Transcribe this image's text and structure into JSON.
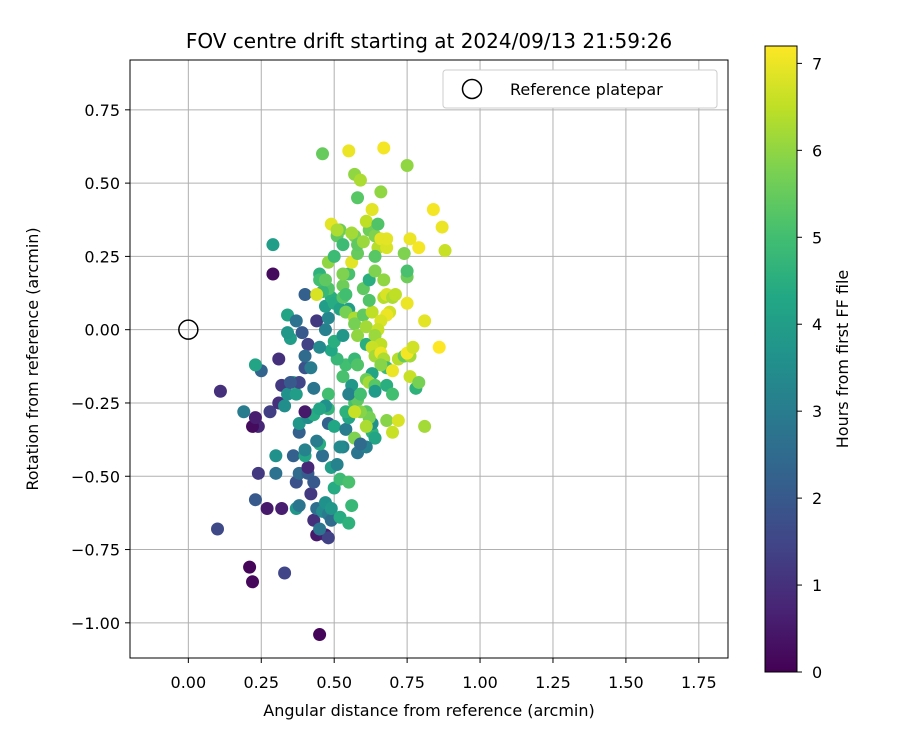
{
  "chart_data": {
    "type": "scatter",
    "title": "FOV centre drift starting at 2024/09/13 21:59:26",
    "xlabel": "Angular distance from reference (arcmin)",
    "ylabel": "Rotation from reference (arcmin)",
    "xlim": [
      -0.2,
      1.85
    ],
    "ylim": [
      -1.12,
      0.92
    ],
    "xticks": [
      0.0,
      0.25,
      0.5,
      0.75,
      1.0,
      1.25,
      1.5,
      1.75
    ],
    "xtick_labels": [
      "0.00",
      "0.25",
      "0.50",
      "0.75",
      "1.00",
      "1.25",
      "1.50",
      "1.75"
    ],
    "yticks": [
      0.75,
      0.5,
      0.25,
      0.0,
      -0.25,
      -0.5,
      -0.75,
      -1.0
    ],
    "ytick_labels": [
      "0.75",
      "0.50",
      "0.25",
      "0.00",
      "−0.25",
      "−0.50",
      "−0.75",
      "−1.00"
    ],
    "grid": true,
    "legend": {
      "position": "upper-right",
      "entries": [
        {
          "label": "Reference platepar",
          "marker": "open-circle"
        }
      ]
    },
    "reference_point": {
      "x": 0.0,
      "y": 0.0,
      "label": "Reference platepar"
    },
    "colorbar": {
      "label": "Hours from first FF file",
      "colormap": "viridis",
      "range": [
        0,
        7.2
      ],
      "ticks": [
        0,
        1,
        2,
        3,
        4,
        5,
        6,
        7
      ],
      "tick_labels": [
        "0",
        "1",
        "2",
        "3",
        "4",
        "5",
        "6",
        "7"
      ]
    },
    "points": [
      [
        0.45,
        -1.04,
        0.1
      ],
      [
        0.22,
        -0.86,
        0.15
      ],
      [
        0.21,
        -0.81,
        0.1
      ],
      [
        0.33,
        -0.83,
        1.5
      ],
      [
        0.1,
        -0.68,
        1.6
      ],
      [
        0.27,
        -0.61,
        0.5
      ],
      [
        0.32,
        -0.61,
        0.6
      ],
      [
        0.23,
        -0.58,
        2.0
      ],
      [
        0.24,
        -0.49,
        1.2
      ],
      [
        0.3,
        -0.49,
        2.7
      ],
      [
        0.24,
        -0.33,
        0.8
      ],
      [
        0.22,
        -0.33,
        0.2
      ],
      [
        0.23,
        -0.3,
        0.6
      ],
      [
        0.28,
        -0.28,
        1.3
      ],
      [
        0.19,
        -0.28,
        3.0
      ],
      [
        0.11,
        -0.21,
        1.0
      ],
      [
        0.25,
        -0.14,
        2.3
      ],
      [
        0.23,
        -0.12,
        4.2
      ],
      [
        0.31,
        -0.1,
        1.0
      ],
      [
        0.32,
        -0.19,
        1.2
      ],
      [
        0.31,
        -0.25,
        1.0
      ],
      [
        0.33,
        -0.26,
        3.5
      ],
      [
        0.34,
        -0.22,
        3.6
      ],
      [
        0.37,
        -0.22,
        4.0
      ],
      [
        0.36,
        -0.18,
        4.5
      ],
      [
        0.38,
        -0.18,
        1.5
      ],
      [
        0.35,
        -0.18,
        2.0
      ],
      [
        0.35,
        -0.03,
        4.0
      ],
      [
        0.34,
        -0.01,
        3.8
      ],
      [
        0.34,
        0.05,
        4.2
      ],
      [
        0.37,
        0.03,
        2.7
      ],
      [
        0.39,
        -0.01,
        2.0
      ],
      [
        0.41,
        -0.05,
        1.4
      ],
      [
        0.4,
        -0.13,
        1.8
      ],
      [
        0.4,
        -0.09,
        2.5
      ],
      [
        0.42,
        -0.13,
        3.0
      ],
      [
        0.4,
        0.12,
        2.2
      ],
      [
        0.29,
        0.19,
        0.2
      ],
      [
        0.29,
        0.29,
        4.0
      ],
      [
        0.3,
        -0.43,
        3.6
      ],
      [
        0.36,
        -0.43,
        2.2
      ],
      [
        0.37,
        -0.61,
        3.8
      ],
      [
        0.38,
        -0.6,
        2.8
      ],
      [
        0.37,
        -0.52,
        1.8
      ],
      [
        0.38,
        -0.49,
        2.5
      ],
      [
        0.41,
        -0.49,
        2.1
      ],
      [
        0.42,
        -0.56,
        1.2
      ],
      [
        0.43,
        -0.52,
        2.0
      ],
      [
        0.41,
        -0.47,
        0.8
      ],
      [
        0.4,
        -0.43,
        4.2
      ],
      [
        0.4,
        -0.41,
        3.2
      ],
      [
        0.38,
        -0.35,
        2.2
      ],
      [
        0.38,
        -0.32,
        3.8
      ],
      [
        0.41,
        -0.3,
        3.5
      ],
      [
        0.43,
        -0.29,
        4.4
      ],
      [
        0.4,
        -0.28,
        0.5
      ],
      [
        0.43,
        -0.2,
        2.8
      ],
      [
        0.43,
        -0.65,
        1.0
      ],
      [
        0.44,
        -0.61,
        2.6
      ],
      [
        0.44,
        -0.7,
        0.5
      ],
      [
        0.47,
        -0.7,
        0.6
      ],
      [
        0.48,
        -0.71,
        1.4
      ],
      [
        0.45,
        -0.68,
        2.8
      ],
      [
        0.46,
        -0.62,
        3.4
      ],
      [
        0.48,
        -0.63,
        3.0
      ],
      [
        0.49,
        -0.65,
        2.5
      ],
      [
        0.47,
        -0.59,
        3.6
      ],
      [
        0.49,
        -0.61,
        3.8
      ],
      [
        0.52,
        -0.64,
        4.4
      ],
      [
        0.55,
        -0.66,
        4.6
      ],
      [
        0.56,
        -0.6,
        4.8
      ],
      [
        0.5,
        -0.54,
        4.4
      ],
      [
        0.52,
        -0.51,
        4.9
      ],
      [
        0.55,
        -0.52,
        5.1
      ],
      [
        0.49,
        -0.47,
        4.0
      ],
      [
        0.51,
        -0.46,
        3.2
      ],
      [
        0.46,
        -0.43,
        2.6
      ],
      [
        0.45,
        -0.39,
        4.5
      ],
      [
        0.44,
        -0.38,
        3.0
      ],
      [
        0.48,
        -0.32,
        2.2
      ],
      [
        0.5,
        -0.33,
        4.3
      ],
      [
        0.48,
        -0.27,
        4.7
      ],
      [
        0.48,
        -0.22,
        5.0
      ],
      [
        0.47,
        -0.26,
        3.6
      ],
      [
        0.45,
        -0.27,
        4.2
      ],
      [
        0.53,
        -0.4,
        3.2
      ],
      [
        0.52,
        -0.4,
        3.4
      ],
      [
        0.54,
        -0.34,
        3.0
      ],
      [
        0.55,
        -0.3,
        4.2
      ],
      [
        0.57,
        -0.37,
        5.8
      ],
      [
        0.58,
        -0.42,
        2.8
      ],
      [
        0.54,
        -0.28,
        4.6
      ],
      [
        0.57,
        -0.25,
        5.1
      ],
      [
        0.58,
        -0.24,
        5.4
      ],
      [
        0.56,
        -0.19,
        3.8
      ],
      [
        0.55,
        -0.22,
        3.2
      ],
      [
        0.53,
        -0.16,
        5.1
      ],
      [
        0.54,
        -0.12,
        5.0
      ],
      [
        0.51,
        -0.1,
        4.8
      ],
      [
        0.49,
        -0.07,
        4.3
      ],
      [
        0.5,
        -0.04,
        4.5
      ],
      [
        0.53,
        -0.02,
        3.8
      ],
      [
        0.45,
        -0.06,
        3.4
      ],
      [
        0.47,
        0.0,
        3.1
      ],
      [
        0.44,
        0.03,
        1.2
      ],
      [
        0.48,
        0.04,
        3.3
      ],
      [
        0.47,
        0.08,
        4.0
      ],
      [
        0.49,
        0.11,
        4.5
      ],
      [
        0.48,
        0.14,
        5.2
      ],
      [
        0.46,
        0.13,
        4.8
      ],
      [
        0.44,
        0.12,
        6.8
      ],
      [
        0.45,
        0.19,
        4.6
      ],
      [
        0.45,
        0.17,
        5.0
      ],
      [
        0.47,
        0.17,
        5.4
      ],
      [
        0.48,
        0.23,
        6.0
      ],
      [
        0.5,
        0.09,
        4.4
      ],
      [
        0.52,
        0.07,
        4.1
      ],
      [
        0.53,
        0.11,
        5.3
      ],
      [
        0.53,
        0.15,
        5.6
      ],
      [
        0.54,
        0.12,
        5.0
      ],
      [
        0.55,
        0.07,
        4.0
      ],
      [
        0.54,
        0.06,
        5.7
      ],
      [
        0.57,
        0.04,
        6.3
      ],
      [
        0.57,
        0.02,
        5.7
      ],
      [
        0.6,
        0.05,
        5.4
      ],
      [
        0.58,
        -0.02,
        6.0
      ],
      [
        0.61,
        -0.05,
        4.5
      ],
      [
        0.61,
        0.01,
        6.2
      ],
      [
        0.63,
        0.06,
        6.5
      ],
      [
        0.62,
        0.1,
        5.2
      ],
      [
        0.6,
        0.14,
        5.4
      ],
      [
        0.62,
        0.17,
        4.5
      ],
      [
        0.64,
        0.2,
        5.8
      ],
      [
        0.55,
        0.19,
        5.1
      ],
      [
        0.53,
        0.19,
        5.8
      ],
      [
        0.5,
        0.25,
        4.9
      ],
      [
        0.51,
        0.32,
        5.4
      ],
      [
        0.52,
        0.34,
        5.6
      ],
      [
        0.53,
        0.29,
        4.9
      ],
      [
        0.56,
        0.23,
        6.9
      ],
      [
        0.58,
        0.26,
        5.5
      ],
      [
        0.57,
        0.32,
        5.7
      ],
      [
        0.56,
        0.33,
        6.2
      ],
      [
        0.58,
        0.29,
        5.4
      ],
      [
        0.6,
        0.3,
        6.1
      ],
      [
        0.62,
        0.34,
        5.6
      ],
      [
        0.61,
        0.37,
        6.5
      ],
      [
        0.65,
        0.28,
        6.4
      ],
      [
        0.64,
        0.32,
        5.8
      ],
      [
        0.65,
        0.36,
        5.2
      ],
      [
        0.66,
        0.31,
        6.9
      ],
      [
        0.68,
        0.28,
        6.8
      ],
      [
        0.68,
        0.31,
        6.9
      ],
      [
        0.64,
        0.25,
        5.3
      ],
      [
        0.63,
        0.41,
        6.9
      ],
      [
        0.58,
        0.45,
        5.3
      ],
      [
        0.66,
        0.47,
        6.0
      ],
      [
        0.57,
        0.53,
        6.0
      ],
      [
        0.59,
        0.51,
        6.3
      ],
      [
        0.55,
        0.61,
        7.0
      ],
      [
        0.46,
        0.6,
        5.5
      ],
      [
        0.67,
        0.62,
        7.1
      ],
      [
        0.75,
        0.56,
        6.0
      ],
      [
        0.49,
        0.36,
        6.9
      ],
      [
        0.51,
        0.34,
        6.3
      ],
      [
        0.67,
        0.11,
        6.4
      ],
      [
        0.68,
        0.12,
        6.8
      ],
      [
        0.7,
        0.11,
        6.3
      ],
      [
        0.69,
        0.06,
        6.7
      ],
      [
        0.71,
        0.12,
        6.5
      ],
      [
        0.67,
        0.17,
        6.0
      ],
      [
        0.68,
        0.05,
        7.0
      ],
      [
        0.66,
        0.03,
        6.8
      ],
      [
        0.65,
        0.0,
        6.6
      ],
      [
        0.64,
        -0.02,
        6.1
      ],
      [
        0.66,
        -0.05,
        6.5
      ],
      [
        0.63,
        -0.06,
        6.6
      ],
      [
        0.64,
        -0.09,
        6.2
      ],
      [
        0.66,
        -0.08,
        7.0
      ],
      [
        0.67,
        -0.1,
        6.3
      ],
      [
        0.68,
        -0.13,
        4.9
      ],
      [
        0.66,
        -0.12,
        5.9
      ],
      [
        0.63,
        -0.15,
        4.2
      ],
      [
        0.61,
        -0.17,
        5.6
      ],
      [
        0.62,
        -0.18,
        6.2
      ],
      [
        0.64,
        -0.19,
        5.3
      ],
      [
        0.64,
        -0.21,
        3.9
      ],
      [
        0.68,
        -0.19,
        4.5
      ],
      [
        0.7,
        -0.22,
        5.0
      ],
      [
        0.72,
        -0.1,
        6.4
      ],
      [
        0.7,
        -0.14,
        7.0
      ],
      [
        0.74,
        -0.09,
        5.5
      ],
      [
        0.76,
        -0.09,
        6.2
      ],
      [
        0.75,
        -0.08,
        7.1
      ],
      [
        0.77,
        -0.06,
        6.7
      ],
      [
        0.76,
        -0.16,
        6.6
      ],
      [
        0.78,
        -0.2,
        4.6
      ],
      [
        0.79,
        -0.18,
        5.7
      ],
      [
        0.75,
        0.09,
        7.0
      ],
      [
        0.75,
        0.18,
        5.6
      ],
      [
        0.75,
        0.2,
        5.1
      ],
      [
        0.74,
        0.26,
        5.8
      ],
      [
        0.76,
        0.31,
        7.0
      ],
      [
        0.79,
        0.28,
        7.1
      ],
      [
        0.84,
        0.41,
        7.1
      ],
      [
        0.87,
        0.35,
        7.0
      ],
      [
        0.88,
        0.27,
        6.6
      ],
      [
        0.81,
        0.03,
        6.9
      ],
      [
        0.86,
        -0.06,
        7.2
      ],
      [
        0.81,
        -0.33,
        6.2
      ],
      [
        0.68,
        -0.31,
        5.9
      ],
      [
        0.7,
        -0.35,
        6.6
      ],
      [
        0.72,
        -0.31,
        6.8
      ],
      [
        0.62,
        -0.3,
        5.9
      ],
      [
        0.61,
        -0.28,
        5.3
      ],
      [
        0.63,
        -0.35,
        4.6
      ],
      [
        0.64,
        -0.37,
        4.2
      ],
      [
        0.63,
        -0.32,
        3.6
      ],
      [
        0.61,
        -0.4,
        3.1
      ],
      [
        0.59,
        -0.39,
        2.5
      ],
      [
        0.62,
        -0.3,
        5.7
      ],
      [
        0.61,
        -0.33,
        6.3
      ],
      [
        0.59,
        -0.28,
        5.9
      ],
      [
        0.57,
        -0.28,
        6.6
      ],
      [
        0.59,
        -0.22,
        5.0
      ],
      [
        0.57,
        -0.1,
        4.8
      ],
      [
        0.58,
        -0.12,
        5.2
      ]
    ]
  }
}
